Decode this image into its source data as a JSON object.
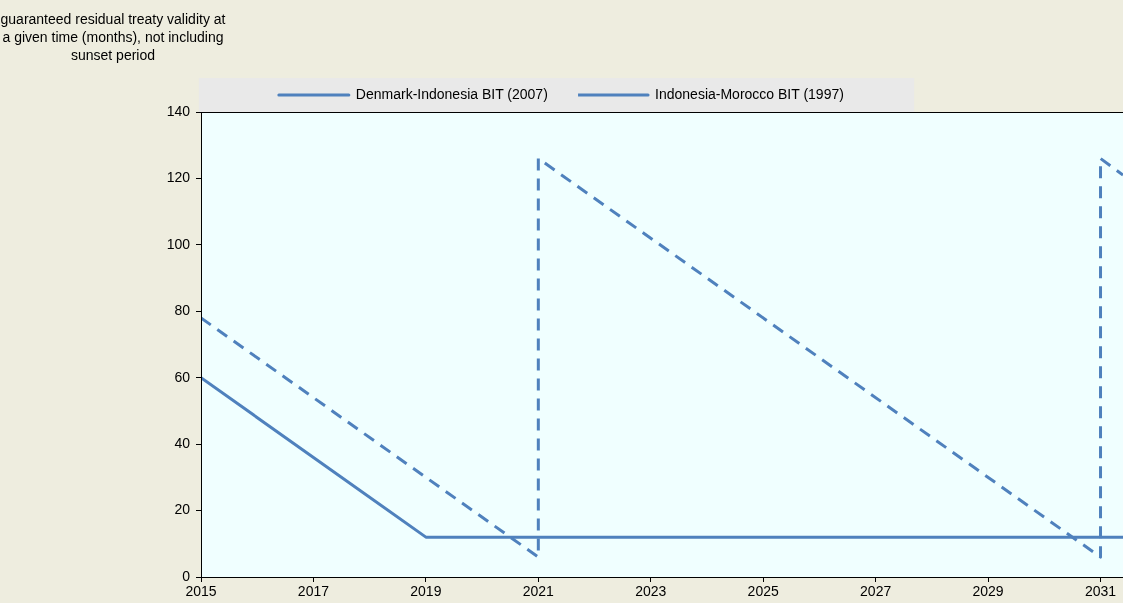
{
  "chart_data": {
    "type": "line",
    "ylabel": "guaranteed residual treaty validity at a given time (months), not including sunset period",
    "series": [
      {
        "name": "Denmark-Indonesia BIT (2007)",
        "color": "#4f81bd",
        "line_style": "solid",
        "x": [
          2015,
          2019,
          2031.4
        ],
        "values": [
          60,
          12,
          12
        ]
      },
      {
        "name": "Indonesia-Morocco BIT (1997)",
        "color": "#4f81bd",
        "line_style": "dashed",
        "x": [
          2015,
          2021,
          2021,
          2031,
          2031,
          2031.4
        ],
        "values": [
          78,
          6,
          126,
          6,
          126,
          121
        ]
      }
    ],
    "xlim": [
      2015,
      2031.4
    ],
    "xticks": [
      2015,
      2017,
      2019,
      2021,
      2023,
      2025,
      2027,
      2029,
      2031
    ],
    "ylim": [
      0,
      140
    ],
    "yticks": [
      0,
      20,
      40,
      60,
      80,
      100,
      120,
      140
    ],
    "grid": false,
    "legend": "top",
    "marker": "none"
  }
}
